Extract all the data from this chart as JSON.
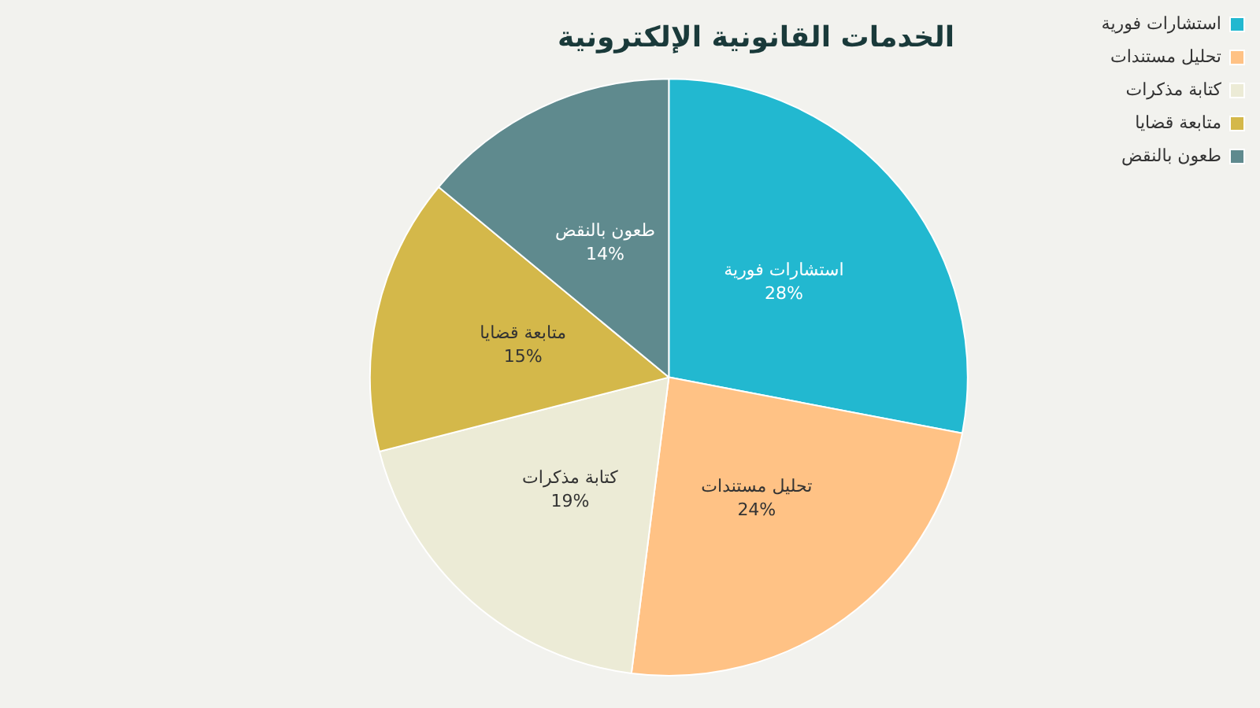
{
  "chart_data": {
    "type": "pie",
    "title": "الخدمات القانونية الإلكترونية",
    "categories": [
      "استشارات فورية",
      "تحليل مستندات",
      "كتابة مذكرات",
      "متابعة قضايا",
      "طعون بالنقض"
    ],
    "values": [
      28,
      24,
      19,
      15,
      14
    ],
    "colors": [
      "#22b8d0",
      "#ffc285",
      "#ecebd6",
      "#d4b84a",
      "#5f8a8e"
    ],
    "value_labels": [
      "28%",
      "24%",
      "19%",
      "15%",
      "14%"
    ],
    "legend": "top right"
  }
}
